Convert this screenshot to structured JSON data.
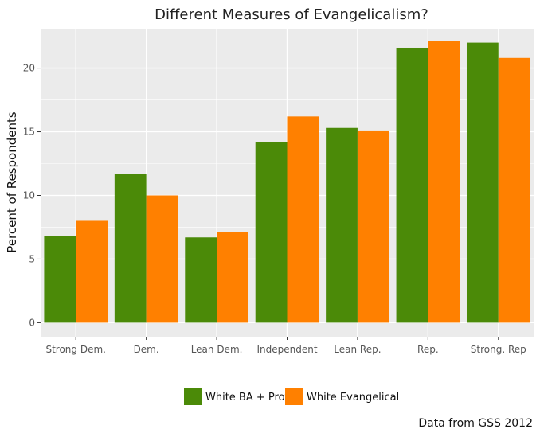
{
  "chart_data": {
    "type": "bar",
    "title": "Different Measures of Evangelicalism?",
    "xlabel": "",
    "ylabel": "Percent of Respondents",
    "caption": "Data from GSS 2012",
    "categories": [
      "Strong Dem.",
      "Dem.",
      "Lean Dem.",
      "Independent",
      "Lean Rep.",
      "Rep.",
      "Strong. Rep"
    ],
    "series": [
      {
        "name": "White BA + Prot",
        "color": "#4b8a08",
        "values": [
          6.8,
          11.7,
          6.7,
          14.2,
          15.3,
          21.6,
          22.0
        ]
      },
      {
        "name": "White Evangelical",
        "color": "#ff8000",
        "values": [
          8.0,
          10.0,
          7.1,
          16.2,
          15.1,
          22.1,
          20.8
        ]
      }
    ],
    "ylim": [
      -1.1,
      23.1
    ],
    "yticks": [
      0,
      5,
      10,
      15,
      20
    ],
    "grid": true,
    "legend_position": "bottom",
    "panel_background": "#ebebeb",
    "grid_color": "#ffffff"
  }
}
